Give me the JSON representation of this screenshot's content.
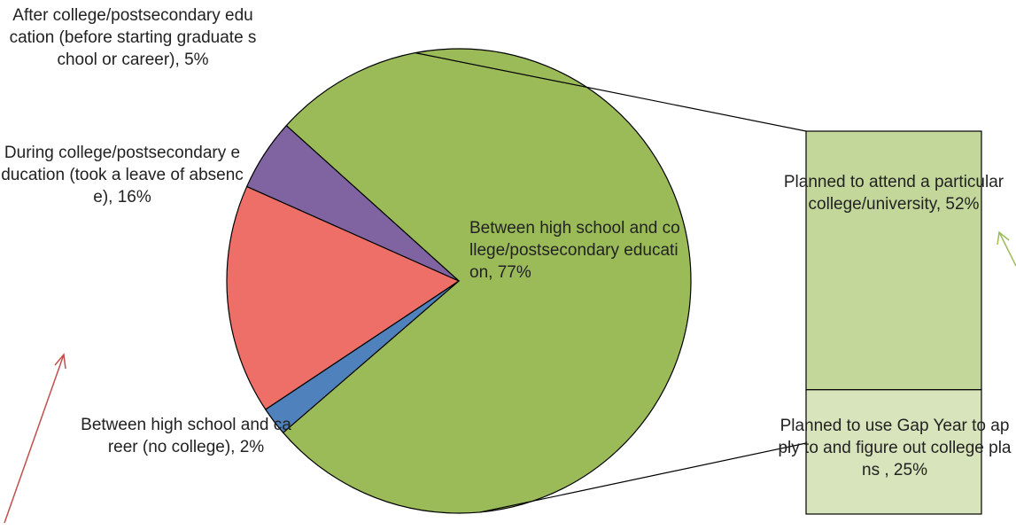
{
  "chart_data": {
    "type": "pie-of-bar",
    "pie": {
      "values": [
        77,
        2,
        16,
        5
      ],
      "colors": [
        "#9bbb59",
        "#4f81bd",
        "#ee6f67",
        "#8064a2"
      ],
      "labels": [
        "Between high school and college/postsecondary education, 77%",
        "Between high school and career (no college), 2%",
        "During college/postsecondary education (took a leave of absence), 16%",
        "After college/postsecondary education (before starting graduate school or career), 5%"
      ]
    },
    "bar": {
      "values": [
        52,
        25
      ],
      "colors": [
        "#c4d79b",
        "#d8e4bc"
      ],
      "labels": [
        "Planned to attend a particular college/university, 52%",
        "Planned to use Gap Year to apply to and figure out college plans , 25%"
      ]
    }
  }
}
